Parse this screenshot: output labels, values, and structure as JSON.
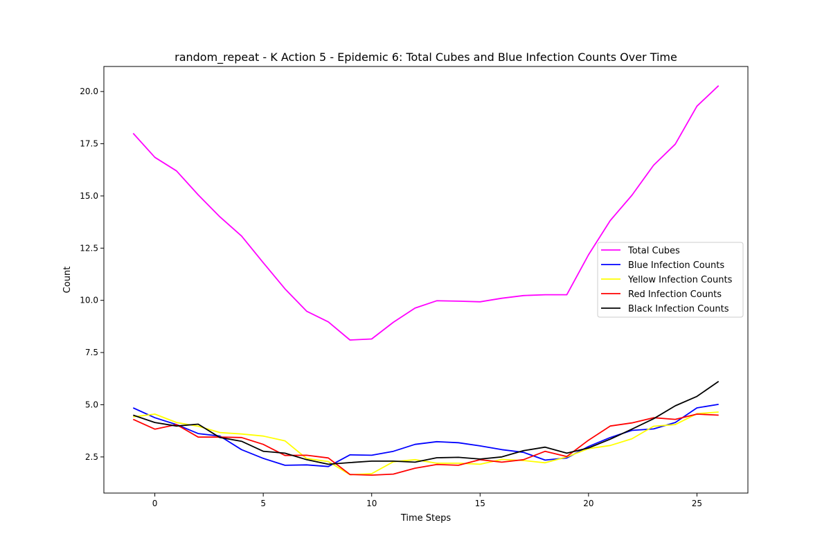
{
  "chart_data": {
    "type": "line",
    "title": "random_repeat - K Action 5 - Epidemic 6: Total Cubes and Blue Infection Counts Over Time",
    "xlabel": "Time Steps",
    "ylabel": "Count",
    "xlim": [
      -2.35,
      27.35
    ],
    "ylim": [
      0.77,
      21.2
    ],
    "xticks": [
      0,
      5,
      10,
      15,
      20,
      25
    ],
    "yticks": [
      2.5,
      5.0,
      7.5,
      10.0,
      12.5,
      15.0,
      17.5,
      20.0
    ],
    "ytick_labels": [
      "2.5",
      "5.0",
      "7.5",
      "10.0",
      "12.5",
      "15.0",
      "17.5",
      "20.0"
    ],
    "grid": false,
    "legend_position": "center-right",
    "x": [
      -1,
      0,
      1,
      2,
      3,
      4,
      5,
      6,
      7,
      8,
      9,
      10,
      11,
      12,
      13,
      14,
      15,
      16,
      17,
      18,
      19,
      20,
      21,
      22,
      23,
      24,
      25,
      26
    ],
    "series": [
      {
        "name": "Total Cubes",
        "color": "#ff00ff",
        "values": [
          18.0,
          16.85,
          16.2,
          15.05,
          14.0,
          13.08,
          11.8,
          10.55,
          9.48,
          8.97,
          8.1,
          8.15,
          8.95,
          9.63,
          9.98,
          9.96,
          9.93,
          10.1,
          10.23,
          10.27,
          10.27,
          12.18,
          13.82,
          15.03,
          16.47,
          17.48,
          19.3,
          20.28
        ]
      },
      {
        "name": "Blue Infection Counts",
        "color": "#0000ff",
        "values": [
          4.85,
          4.38,
          4.05,
          3.62,
          3.5,
          2.85,
          2.43,
          2.1,
          2.12,
          2.04,
          2.6,
          2.58,
          2.77,
          3.1,
          3.23,
          3.18,
          3.03,
          2.85,
          2.72,
          2.35,
          2.45,
          3.0,
          3.43,
          3.77,
          3.84,
          4.15,
          4.85,
          5.02
        ]
      },
      {
        "name": "Yellow Infection Counts",
        "color": "#ffff00",
        "values": [
          4.42,
          4.55,
          4.15,
          3.97,
          3.67,
          3.6,
          3.5,
          3.27,
          2.42,
          2.28,
          1.65,
          1.7,
          2.27,
          2.37,
          2.2,
          2.2,
          2.15,
          2.38,
          2.33,
          2.22,
          2.5,
          2.9,
          3.05,
          3.37,
          3.97,
          4.05,
          4.57,
          4.65
        ]
      },
      {
        "name": "Red Infection Counts",
        "color": "#ff0000",
        "values": [
          4.3,
          3.83,
          4.05,
          3.45,
          3.45,
          3.43,
          3.1,
          2.57,
          2.58,
          2.45,
          1.66,
          1.63,
          1.68,
          1.96,
          2.14,
          2.1,
          2.37,
          2.25,
          2.37,
          2.77,
          2.52,
          3.3,
          3.98,
          4.13,
          4.38,
          4.3,
          4.55,
          4.5
        ]
      },
      {
        "name": "Black Infection Counts",
        "color": "#000000",
        "values": [
          4.5,
          4.15,
          3.98,
          4.07,
          3.43,
          3.25,
          2.77,
          2.68,
          2.37,
          2.15,
          2.23,
          2.3,
          2.3,
          2.25,
          2.46,
          2.48,
          2.4,
          2.5,
          2.8,
          2.97,
          2.68,
          2.93,
          3.35,
          3.83,
          4.33,
          4.95,
          5.4,
          6.12
        ]
      }
    ]
  }
}
